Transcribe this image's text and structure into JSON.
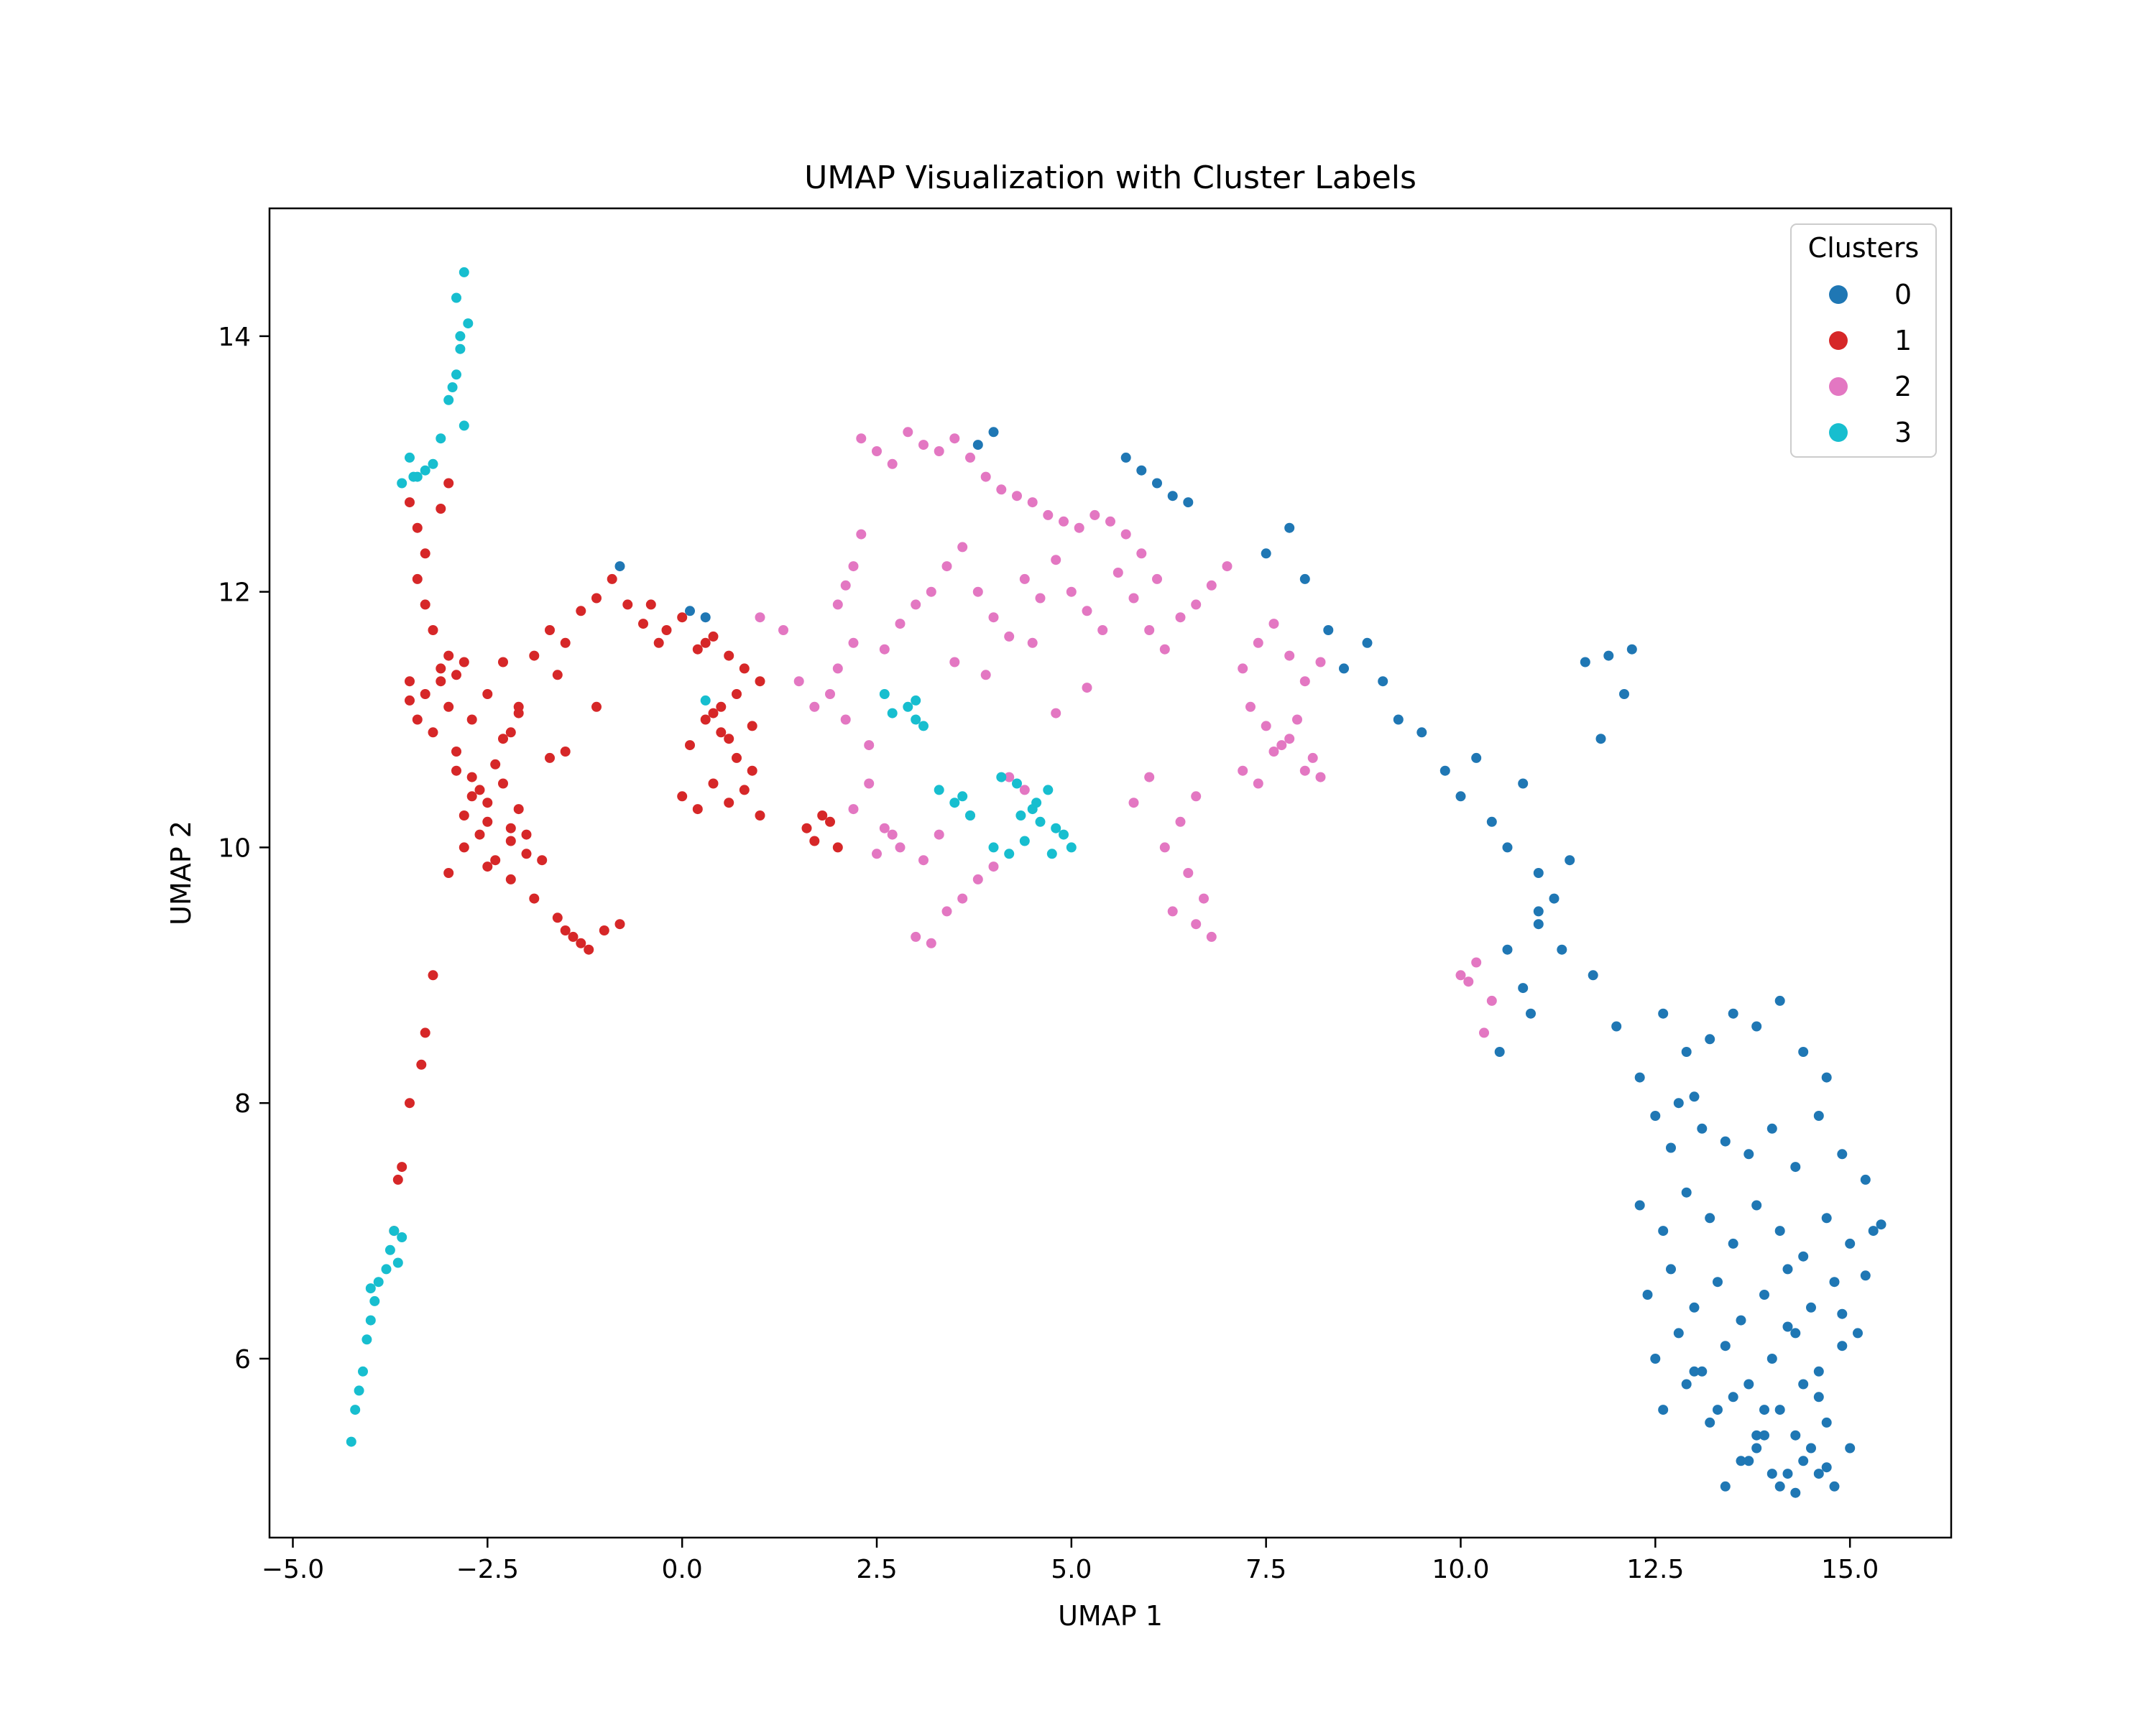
{
  "chart_data": {
    "type": "scatter",
    "title": "UMAP Visualization with Cluster Labels",
    "xlabel": "UMAP 1",
    "ylabel": "UMAP 2",
    "xlim": [
      -5.3,
      16.3
    ],
    "ylim": [
      4.6,
      15.0
    ],
    "xticks": [
      -5.0,
      -2.5,
      0.0,
      2.5,
      5.0,
      7.5,
      10.0,
      12.5,
      15.0
    ],
    "xtick_labels": [
      "−5.0",
      "−2.5",
      "0.0",
      "2.5",
      "5.0",
      "7.5",
      "10.0",
      "12.5",
      "15.0"
    ],
    "yticks": [
      6,
      8,
      10,
      12,
      14
    ],
    "ytick_labels": [
      "6",
      "8",
      "10",
      "12",
      "14"
    ],
    "grid": false,
    "legend": {
      "title": "Clusters",
      "placement": "top-right",
      "entries": [
        "0",
        "1",
        "2",
        "3"
      ]
    },
    "colors": [
      "#1f77b4",
      "#d62728",
      "#e377c2",
      "#17becf"
    ],
    "series": [
      {
        "name": "0",
        "color": "#1f77b4",
        "x": [
          7.5,
          7.8,
          8.0,
          8.3,
          8.5,
          8.8,
          9.0,
          9.2,
          9.5,
          9.8,
          10.0,
          10.2,
          10.4,
          10.6,
          10.8,
          11.0,
          11.2,
          11.4,
          11.0,
          10.6,
          10.8,
          11.0,
          10.5,
          10.9,
          11.3,
          11.7,
          12.0,
          12.3,
          12.6,
          12.9,
          13.2,
          13.5,
          13.8,
          14.1,
          14.4,
          14.7,
          12.5,
          12.8,
          13.1,
          13.4,
          13.7,
          14.0,
          14.3,
          14.6,
          14.9,
          15.2,
          12.3,
          12.6,
          12.9,
          13.2,
          13.5,
          13.8,
          14.1,
          14.4,
          14.7,
          15.0,
          15.3,
          12.4,
          12.7,
          13.0,
          13.3,
          13.6,
          13.9,
          14.2,
          14.5,
          14.8,
          15.1,
          12.5,
          12.8,
          13.1,
          13.4,
          13.7,
          14.0,
          14.3,
          14.6,
          14.9,
          12.6,
          12.9,
          13.2,
          13.5,
          13.8,
          14.1,
          14.4,
          14.7,
          15.0,
          13.0,
          13.3,
          13.6,
          13.9,
          14.2,
          14.5,
          14.8,
          13.4,
          13.7,
          14.0,
          14.3,
          14.6,
          13.8,
          14.1,
          14.4,
          14.7,
          13.9,
          14.3,
          14.6,
          5.7,
          5.9,
          6.1,
          6.3,
          6.5,
          4.0,
          3.8,
          0.1,
          0.3,
          -0.8,
          12.2,
          11.9,
          12.1,
          11.6,
          11.8,
          13.0,
          12.7,
          14.2,
          15.4,
          15.2,
          14.9
        ],
        "y": [
          12.3,
          12.5,
          12.1,
          11.7,
          11.4,
          11.6,
          11.3,
          11.0,
          10.9,
          10.6,
          10.4,
          10.7,
          10.2,
          10.0,
          10.5,
          9.8,
          9.6,
          9.9,
          9.4,
          9.2,
          8.9,
          9.5,
          8.4,
          8.7,
          9.2,
          9.0,
          8.6,
          8.2,
          8.7,
          8.4,
          8.5,
          8.7,
          8.6,
          8.8,
          8.4,
          8.2,
          7.9,
          8.0,
          7.8,
          7.7,
          7.6,
          7.8,
          7.5,
          7.9,
          7.6,
          7.4,
          7.2,
          7.0,
          7.3,
          7.1,
          6.9,
          7.2,
          7.0,
          6.8,
          7.1,
          6.9,
          7.0,
          6.5,
          6.7,
          6.4,
          6.6,
          6.3,
          6.5,
          6.7,
          6.4,
          6.6,
          6.2,
          6.0,
          6.2,
          5.9,
          6.1,
          5.8,
          6.0,
          6.2,
          5.9,
          6.1,
          5.6,
          5.8,
          5.5,
          5.7,
          5.4,
          5.6,
          5.8,
          5.5,
          5.3,
          5.9,
          5.6,
          5.2,
          5.4,
          5.1,
          5.3,
          5.0,
          5.0,
          5.2,
          5.1,
          4.95,
          5.1,
          5.3,
          5.0,
          5.2,
          5.15,
          5.6,
          5.4,
          5.7,
          13.05,
          12.95,
          12.85,
          12.75,
          12.7,
          13.25,
          13.15,
          11.85,
          11.8,
          12.2,
          11.55,
          11.5,
          11.2,
          11.45,
          10.85,
          8.05,
          7.65,
          6.25,
          7.05,
          6.65,
          6.35
        ]
      },
      {
        "name": "1",
        "color": "#d62728",
        "x": [
          -3.5,
          -3.4,
          -3.3,
          -3.4,
          -3.3,
          -3.2,
          -3.0,
          -3.5,
          -3.3,
          -3.1,
          -3.4,
          -3.2,
          -3.0,
          -3.5,
          -3.1,
          -2.9,
          -2.7,
          -2.5,
          -2.3,
          -2.1,
          -1.9,
          -1.7,
          -1.5,
          -1.3,
          -1.1,
          -0.9,
          -0.7,
          -0.5,
          -0.3,
          -2.9,
          -2.7,
          -2.5,
          -2.3,
          -2.1,
          -2.8,
          -2.6,
          -2.4,
          -2.2,
          -2.0,
          -3.0,
          -2.8,
          -2.6,
          -2.4,
          -2.2,
          -2.9,
          -2.7,
          -2.5,
          -2.3,
          -2.0,
          -1.8,
          -1.6,
          -1.4,
          -1.2,
          -1.5,
          -1.3,
          -1.0,
          -0.8,
          -2.5,
          -2.2,
          -1.9,
          -1.7,
          -0.4,
          -0.2,
          0.0,
          0.2,
          0.4,
          0.6,
          0.8,
          1.0,
          0.1,
          0.3,
          0.5,
          0.7,
          0.9,
          0.0,
          0.2,
          0.4,
          0.6,
          0.8,
          1.0,
          0.5,
          0.7,
          0.9,
          1.6,
          1.8,
          2.0,
          1.7,
          1.9,
          -3.2,
          -3.3,
          -3.35,
          -3.5,
          -3.6,
          -3.65,
          -3.7,
          -3.0,
          -3.1,
          -2.2,
          -1.6,
          -1.1,
          -2.8,
          -2.1,
          -1.5,
          0.4,
          0.6,
          0.3
        ],
        "y": [
          12.7,
          12.5,
          12.3,
          12.1,
          11.9,
          11.7,
          11.5,
          11.3,
          11.2,
          11.4,
          11.0,
          10.9,
          11.1,
          11.15,
          11.3,
          11.35,
          11.0,
          11.2,
          11.45,
          11.1,
          11.5,
          11.7,
          11.6,
          11.85,
          11.95,
          12.1,
          11.9,
          11.75,
          11.6,
          10.6,
          10.4,
          10.2,
          10.5,
          10.3,
          10.0,
          10.1,
          9.9,
          10.15,
          9.95,
          9.8,
          10.25,
          10.45,
          10.65,
          10.05,
          10.75,
          10.55,
          10.35,
          10.85,
          10.1,
          9.9,
          9.45,
          9.3,
          9.2,
          9.35,
          9.25,
          9.35,
          9.4,
          9.85,
          9.75,
          9.6,
          10.7,
          11.9,
          11.7,
          11.8,
          11.55,
          11.65,
          11.5,
          11.4,
          11.3,
          10.8,
          11.0,
          10.9,
          10.7,
          10.6,
          10.4,
          10.3,
          10.5,
          10.35,
          10.45,
          10.25,
          11.1,
          11.2,
          10.95,
          10.15,
          10.25,
          10.0,
          10.05,
          10.2,
          9.0,
          8.55,
          8.3,
          8.0,
          7.5,
          7.4,
          7.0,
          12.85,
          12.65,
          10.9,
          11.35,
          11.1,
          11.45,
          11.05,
          10.75,
          11.05,
          10.85,
          11.6
        ]
      },
      {
        "name": "2",
        "color": "#e377c2",
        "x": [
          2.3,
          2.5,
          2.7,
          2.9,
          3.1,
          3.3,
          3.5,
          3.7,
          3.9,
          4.1,
          4.3,
          4.5,
          4.7,
          4.9,
          5.1,
          5.3,
          5.5,
          5.7,
          5.9,
          6.1,
          2.0,
          2.1,
          2.2,
          2.3,
          2.2,
          2.0,
          1.9,
          2.1,
          2.4,
          2.6,
          2.8,
          3.0,
          3.2,
          3.4,
          3.6,
          3.8,
          4.0,
          4.2,
          4.4,
          4.6,
          4.8,
          5.0,
          5.2,
          5.4,
          5.6,
          5.8,
          6.0,
          6.2,
          6.4,
          6.6,
          6.8,
          7.0,
          7.2,
          7.4,
          7.6,
          7.8,
          8.0,
          8.2,
          7.3,
          7.5,
          7.7,
          7.9,
          8.1,
          7.2,
          7.4,
          7.6,
          7.8,
          8.0,
          8.2,
          6.6,
          6.4,
          6.2,
          6.5,
          6.7,
          6.3,
          6.6,
          6.8,
          3.0,
          3.2,
          3.4,
          3.6,
          3.8,
          4.0,
          3.1,
          3.3,
          2.2,
          2.4,
          2.6,
          2.8,
          2.5,
          2.7,
          1.5,
          1.7,
          1.0,
          1.3,
          4.2,
          4.4,
          3.9,
          5.8,
          6.0,
          10.0,
          10.2,
          10.4,
          10.1,
          10.3,
          3.5,
          4.5,
          5.2,
          3.7,
          4.8
        ],
        "y": [
          13.2,
          13.1,
          13.0,
          13.25,
          13.15,
          13.1,
          13.2,
          13.05,
          12.9,
          12.8,
          12.75,
          12.7,
          12.6,
          12.55,
          12.5,
          12.6,
          12.55,
          12.45,
          12.3,
          12.1,
          11.9,
          12.05,
          12.2,
          12.45,
          11.6,
          11.4,
          11.2,
          11.0,
          10.8,
          11.55,
          11.75,
          11.9,
          12.0,
          12.2,
          12.35,
          12.0,
          11.8,
          11.65,
          12.1,
          11.95,
          12.25,
          12.0,
          11.85,
          11.7,
          12.15,
          11.95,
          11.7,
          11.55,
          11.8,
          11.9,
          12.05,
          12.2,
          11.4,
          11.6,
          11.75,
          11.5,
          11.3,
          11.45,
          11.1,
          10.95,
          10.8,
          11.0,
          10.7,
          10.6,
          10.5,
          10.75,
          10.85,
          10.6,
          10.55,
          10.4,
          10.2,
          10.0,
          9.8,
          9.6,
          9.5,
          9.4,
          9.3,
          9.3,
          9.25,
          9.5,
          9.6,
          9.75,
          9.85,
          9.9,
          10.1,
          10.3,
          10.5,
          10.15,
          10.0,
          9.95,
          10.1,
          11.3,
          11.1,
          11.8,
          11.7,
          10.55,
          10.45,
          11.35,
          10.35,
          10.55,
          9.0,
          9.1,
          8.8,
          8.95,
          8.55,
          11.45,
          11.6,
          11.25,
          10.25,
          11.05
        ]
      },
      {
        "name": "3",
        "color": "#17becf",
        "x": [
          -2.8,
          -2.9,
          -2.75,
          -2.85,
          -2.9,
          -2.95,
          -3.0,
          -2.8,
          -3.1,
          -3.2,
          -3.3,
          -3.4,
          -3.5,
          -3.6,
          -3.45,
          -2.85,
          -3.7,
          -3.75,
          -3.8,
          -3.9,
          -3.95,
          -4.0,
          -4.05,
          -4.1,
          -4.15,
          -4.2,
          -4.25,
          -4.0,
          -3.6,
          -3.65,
          3.0,
          3.1,
          2.9,
          3.0,
          2.6,
          2.7,
          3.3,
          3.5,
          3.7,
          4.0,
          4.2,
          4.4,
          4.6,
          4.8,
          5.0,
          4.3,
          4.5,
          4.7,
          4.9,
          4.1,
          4.35,
          3.6,
          0.3,
          4.55,
          4.75
        ],
        "y": [
          14.5,
          14.3,
          14.1,
          13.9,
          13.7,
          13.6,
          13.5,
          13.3,
          13.2,
          13.0,
          12.95,
          12.9,
          13.05,
          12.85,
          12.9,
          14.0,
          7.0,
          6.85,
          6.7,
          6.6,
          6.45,
          6.3,
          6.15,
          5.9,
          5.75,
          5.6,
          5.35,
          6.55,
          6.95,
          6.75,
          11.0,
          10.95,
          11.1,
          11.15,
          11.2,
          11.05,
          10.45,
          10.35,
          10.25,
          10.0,
          9.95,
          10.05,
          10.2,
          10.15,
          10.0,
          10.5,
          10.3,
          10.45,
          10.1,
          10.55,
          10.25,
          10.4,
          11.15,
          10.35,
          9.95
        ]
      }
    ]
  }
}
